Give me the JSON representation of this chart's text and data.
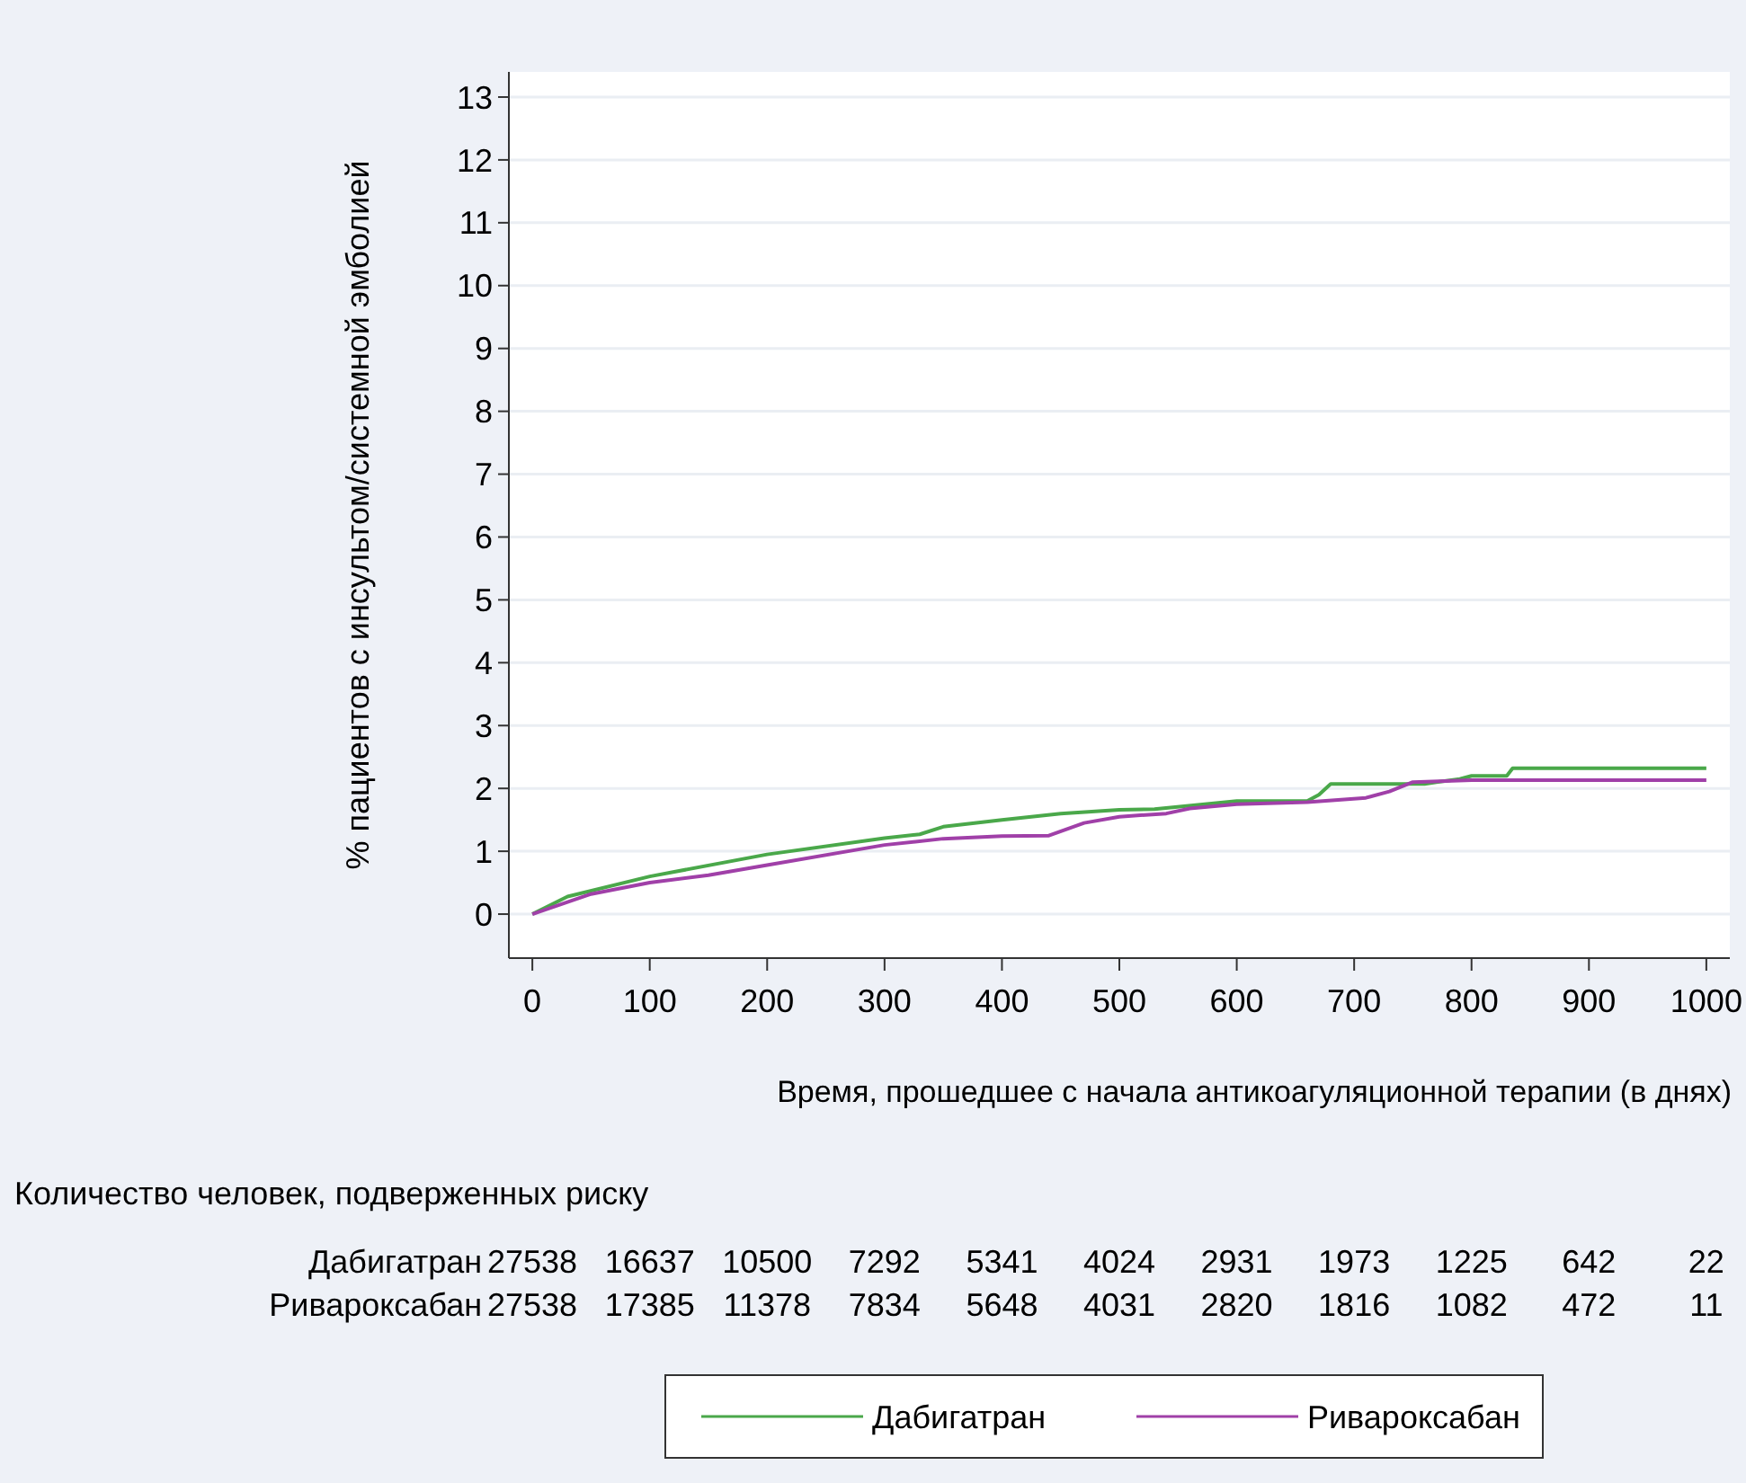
{
  "chart_data": {
    "type": "line",
    "xlabel": "Время, прошедшее с начала антикоагуляционной терапии (в днях)",
    "ylabel": "% пациентов с инсультом/системной эмболией",
    "xlim": [
      -20,
      1020
    ],
    "ylim": [
      -0.7,
      13.4
    ],
    "xticks": [
      0,
      100,
      200,
      300,
      400,
      500,
      600,
      700,
      800,
      900,
      1000
    ],
    "yticks": [
      0,
      1,
      2,
      3,
      4,
      5,
      6,
      7,
      8,
      9,
      10,
      11,
      12,
      13
    ],
    "grid": "y",
    "legend": "bottom",
    "series": [
      {
        "name": "Дабигатран",
        "color": "#4aa84a",
        "x": [
          0,
          30,
          100,
          200,
          300,
          330,
          350,
          400,
          450,
          500,
          530,
          600,
          660,
          670,
          680,
          760,
          770,
          790,
          800,
          830,
          835,
          1000
        ],
        "values": [
          0,
          0.28,
          0.6,
          0.95,
          1.21,
          1.27,
          1.39,
          1.5,
          1.6,
          1.66,
          1.67,
          1.8,
          1.8,
          1.9,
          2.07,
          2.07,
          2.1,
          2.15,
          2.2,
          2.2,
          2.32,
          2.32
        ]
      },
      {
        "name": "Ривароксабан",
        "color": "#a040a8",
        "x": [
          0,
          50,
          100,
          150,
          200,
          300,
          350,
          400,
          440,
          470,
          500,
          540,
          560,
          600,
          660,
          710,
          730,
          750,
          800,
          1000
        ],
        "values": [
          0,
          0.32,
          0.5,
          0.62,
          0.78,
          1.1,
          1.2,
          1.24,
          1.25,
          1.45,
          1.55,
          1.6,
          1.68,
          1.75,
          1.78,
          1.85,
          1.95,
          2.1,
          2.13,
          2.13
        ]
      }
    ],
    "annotations": [
      "Количество человек, подверженных риску",
      "Дабигатран 27538 16637 10500 7292 5341 4024 2931 1973 1225 642 22",
      "Ривароксабан 27538 17385 11378 7834 5648 4031 2820 1816 1082 472 11"
    ]
  }
}
